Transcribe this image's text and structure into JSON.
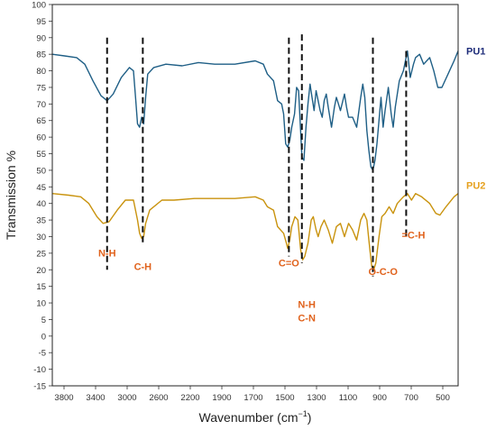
{
  "chart_data": {
    "type": "line",
    "title": "",
    "xlabel": "Wavenumber (cm",
    "xlabel_sup": "−1",
    "xlabel_close": ")",
    "ylabel": "Transmission %",
    "x_ticks": [
      3800,
      3400,
      3000,
      2600,
      2200,
      1900,
      1700,
      1500,
      1300,
      1100,
      900,
      700,
      500
    ],
    "y_ticks": [
      100,
      95,
      90,
      85,
      80,
      75,
      70,
      65,
      60,
      55,
      50,
      45,
      40,
      35,
      30,
      25,
      20,
      15,
      10,
      5,
      0,
      -5,
      -10,
      -15
    ],
    "ylim": [
      -15,
      100
    ],
    "grid": false,
    "series": [
      {
        "name": "PU1",
        "color": "#1f5f86",
        "label_color": "#1f2d7a",
        "points": [
          [
            0,
            85
          ],
          [
            0.03,
            84.5
          ],
          [
            0.06,
            84
          ],
          [
            0.08,
            82
          ],
          [
            0.1,
            77
          ],
          [
            0.12,
            72.5
          ],
          [
            0.135,
            71
          ],
          [
            0.15,
            73
          ],
          [
            0.17,
            78
          ],
          [
            0.19,
            81
          ],
          [
            0.2,
            80
          ],
          [
            0.205,
            72
          ],
          [
            0.21,
            64
          ],
          [
            0.215,
            63
          ],
          [
            0.22,
            66
          ],
          [
            0.225,
            64
          ],
          [
            0.23,
            72
          ],
          [
            0.235,
            79
          ],
          [
            0.25,
            81
          ],
          [
            0.28,
            82
          ],
          [
            0.32,
            81.5
          ],
          [
            0.36,
            82.5
          ],
          [
            0.4,
            82
          ],
          [
            0.45,
            82
          ],
          [
            0.5,
            83
          ],
          [
            0.52,
            82
          ],
          [
            0.53,
            79
          ],
          [
            0.545,
            77
          ],
          [
            0.555,
            71
          ],
          [
            0.565,
            70
          ],
          [
            0.57,
            67
          ],
          [
            0.575,
            58
          ],
          [
            0.58,
            57
          ],
          [
            0.585,
            59
          ],
          [
            0.59,
            63
          ],
          [
            0.597,
            67
          ],
          [
            0.602,
            75
          ],
          [
            0.607,
            74
          ],
          [
            0.615,
            54
          ],
          [
            0.62,
            53
          ],
          [
            0.625,
            63
          ],
          [
            0.63,
            70
          ],
          [
            0.635,
            76
          ],
          [
            0.64,
            72
          ],
          [
            0.645,
            68
          ],
          [
            0.65,
            74
          ],
          [
            0.655,
            71
          ],
          [
            0.66,
            68
          ],
          [
            0.665,
            66
          ],
          [
            0.67,
            71
          ],
          [
            0.675,
            73
          ],
          [
            0.68,
            69
          ],
          [
            0.688,
            63
          ],
          [
            0.695,
            69
          ],
          [
            0.7,
            72
          ],
          [
            0.705,
            70
          ],
          [
            0.71,
            68
          ],
          [
            0.72,
            73
          ],
          [
            0.725,
            69
          ],
          [
            0.73,
            66
          ],
          [
            0.74,
            66
          ],
          [
            0.75,
            63
          ],
          [
            0.76,
            72
          ],
          [
            0.765,
            76
          ],
          [
            0.77,
            72
          ],
          [
            0.775,
            62
          ],
          [
            0.78,
            56
          ],
          [
            0.785,
            51
          ],
          [
            0.79,
            50
          ],
          [
            0.795,
            53
          ],
          [
            0.8,
            58
          ],
          [
            0.807,
            68
          ],
          [
            0.81,
            72
          ],
          [
            0.815,
            63
          ],
          [
            0.82,
            68
          ],
          [
            0.828,
            75
          ],
          [
            0.835,
            67
          ],
          [
            0.84,
            63
          ],
          [
            0.845,
            69
          ],
          [
            0.855,
            77
          ],
          [
            0.865,
            80
          ],
          [
            0.875,
            86
          ],
          [
            0.882,
            78
          ],
          [
            0.89,
            82
          ],
          [
            0.895,
            84
          ],
          [
            0.905,
            85
          ],
          [
            0.915,
            82
          ],
          [
            0.93,
            84
          ],
          [
            0.94,
            80
          ],
          [
            0.95,
            75
          ],
          [
            0.96,
            75
          ],
          [
            0.975,
            79
          ],
          [
            0.99,
            83
          ],
          [
            1.0,
            86
          ]
        ]
      },
      {
        "name": "PU2",
        "color": "#c9930e",
        "label_color": "#e6a11f",
        "points": [
          [
            0,
            43
          ],
          [
            0.04,
            42.5
          ],
          [
            0.07,
            42
          ],
          [
            0.09,
            40
          ],
          [
            0.11,
            36
          ],
          [
            0.125,
            34
          ],
          [
            0.14,
            34.5
          ],
          [
            0.16,
            38
          ],
          [
            0.18,
            41
          ],
          [
            0.2,
            41
          ],
          [
            0.21,
            35
          ],
          [
            0.215,
            31
          ],
          [
            0.22,
            29.5
          ],
          [
            0.225,
            30
          ],
          [
            0.23,
            34
          ],
          [
            0.24,
            38
          ],
          [
            0.27,
            41
          ],
          [
            0.3,
            41
          ],
          [
            0.35,
            41.5
          ],
          [
            0.4,
            41.5
          ],
          [
            0.45,
            41.5
          ],
          [
            0.5,
            42
          ],
          [
            0.52,
            41
          ],
          [
            0.53,
            39
          ],
          [
            0.545,
            38
          ],
          [
            0.555,
            33
          ],
          [
            0.57,
            31
          ],
          [
            0.577,
            28
          ],
          [
            0.58,
            26.5
          ],
          [
            0.585,
            29
          ],
          [
            0.59,
            33
          ],
          [
            0.598,
            36
          ],
          [
            0.605,
            35
          ],
          [
            0.612,
            26
          ],
          [
            0.617,
            23
          ],
          [
            0.622,
            24
          ],
          [
            0.63,
            28
          ],
          [
            0.638,
            35
          ],
          [
            0.643,
            36
          ],
          [
            0.65,
            32
          ],
          [
            0.655,
            30
          ],
          [
            0.662,
            33
          ],
          [
            0.67,
            35
          ],
          [
            0.68,
            32
          ],
          [
            0.69,
            28
          ],
          [
            0.7,
            33
          ],
          [
            0.71,
            34
          ],
          [
            0.72,
            30
          ],
          [
            0.73,
            34
          ],
          [
            0.74,
            32
          ],
          [
            0.75,
            29
          ],
          [
            0.76,
            35
          ],
          [
            0.768,
            37
          ],
          [
            0.775,
            35
          ],
          [
            0.78,
            29
          ],
          [
            0.787,
            21
          ],
          [
            0.792,
            20
          ],
          [
            0.797,
            22
          ],
          [
            0.805,
            30
          ],
          [
            0.812,
            36
          ],
          [
            0.82,
            37
          ],
          [
            0.83,
            39
          ],
          [
            0.84,
            37
          ],
          [
            0.85,
            40
          ],
          [
            0.865,
            42
          ],
          [
            0.875,
            43
          ],
          [
            0.885,
            41
          ],
          [
            0.895,
            43
          ],
          [
            0.91,
            42
          ],
          [
            0.93,
            40
          ],
          [
            0.945,
            37
          ],
          [
            0.955,
            36.5
          ],
          [
            0.97,
            39
          ],
          [
            0.99,
            42
          ],
          [
            1.0,
            43
          ]
        ]
      }
    ],
    "annotations": [
      {
        "lines": [
          "N-H"
        ],
        "x": 0.135,
        "y": 24,
        "line_x": 0.135,
        "line_top": 90,
        "line_bottom": 20
      },
      {
        "lines": [
          "C-H"
        ],
        "x": 0.223,
        "y": 20,
        "line_x": 0.223,
        "line_top": 90,
        "line_bottom": 28
      },
      {
        "lines": [
          "C=O"
        ],
        "x": 0.583,
        "y": 21,
        "line_x": 0.583,
        "line_top": 90,
        "line_bottom": 24
      },
      {
        "lines": [
          "N-H",
          "C-N"
        ],
        "x": 0.627,
        "y": 8.5,
        "line_x": 0.615,
        "line_top": 91,
        "line_bottom": 22
      },
      {
        "lines": [
          "O-C-O"
        ],
        "x": 0.815,
        "y": 18.5,
        "line_x": 0.79,
        "line_top": 90,
        "line_bottom": 18
      },
      {
        "lines": [
          "=C-H"
        ],
        "x": 0.89,
        "y": 29.5,
        "line_x": 0.872,
        "line_top": 86,
        "line_bottom": 30
      }
    ]
  }
}
